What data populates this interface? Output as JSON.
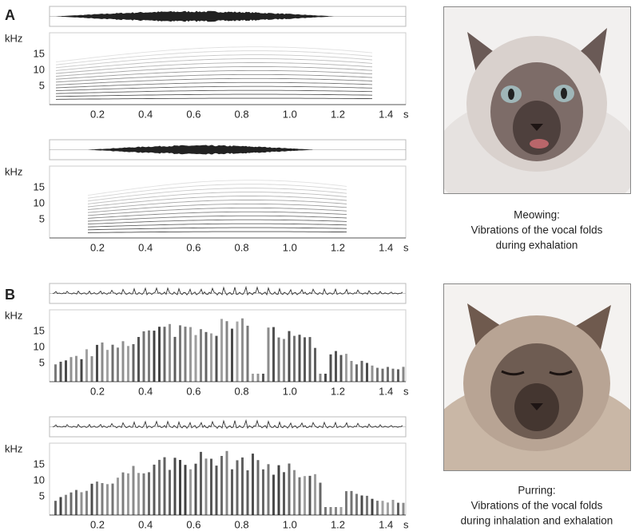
{
  "panels": [
    {
      "label": "A",
      "plots": [
        {
          "freq_unit": "kHz",
          "freq_ticks": [
            "15",
            "10",
            "5"
          ],
          "time_ticks": [
            "0.2",
            "0.4",
            "0.6",
            "0.8",
            "1.0",
            "1.2",
            "1.4"
          ],
          "time_unit": "s"
        },
        {
          "freq_unit": "kHz",
          "freq_ticks": [
            "15",
            "10",
            "5"
          ],
          "time_ticks": [
            "0.2",
            "0.4",
            "0.6",
            "0.8",
            "1.0",
            "1.2",
            "1.4"
          ],
          "time_unit": "s"
        }
      ],
      "caption": [
        "Meowing:",
        "Vibrations of the vocal folds",
        "during exhalation"
      ]
    },
    {
      "label": "B",
      "plots": [
        {
          "freq_unit": "kHz",
          "freq_ticks": [
            "15",
            "10",
            "5"
          ],
          "time_ticks": [
            "0.2",
            "0.4",
            "0.6",
            "0.8",
            "1.0",
            "1.2",
            "1.4"
          ],
          "time_unit": "s"
        },
        {
          "freq_unit": "kHz",
          "freq_ticks": [
            "15",
            "10",
            "5"
          ],
          "time_ticks": [
            "0.2",
            "0.4",
            "0.6",
            "0.8",
            "1.0",
            "1.2",
            "1.4"
          ],
          "time_unit": "s"
        }
      ],
      "caption": [
        "Purring:",
        "Vibrations of the vocal folds",
        "during inhalation and exhalation"
      ]
    }
  ]
}
